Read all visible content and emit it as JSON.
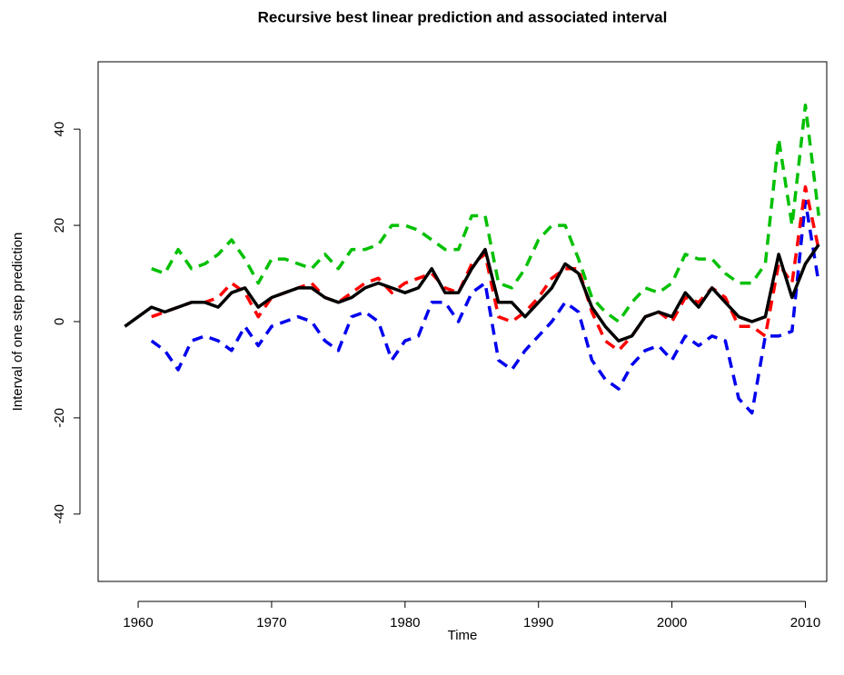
{
  "chart_data": {
    "type": "line",
    "title": "Recursive best linear prediction and associated interval",
    "xlabel": "Time",
    "ylabel": "Interval of one step prediction",
    "x": [
      1959,
      1960,
      1961,
      1962,
      1963,
      1964,
      1965,
      1966,
      1967,
      1968,
      1969,
      1970,
      1971,
      1972,
      1973,
      1974,
      1975,
      1976,
      1977,
      1978,
      1979,
      1980,
      1981,
      1982,
      1983,
      1984,
      1985,
      1986,
      1987,
      1988,
      1989,
      1990,
      1991,
      1992,
      1993,
      1994,
      1995,
      1996,
      1997,
      1998,
      1999,
      2000,
      2001,
      2002,
      2003,
      2004,
      2005,
      2006,
      2007,
      2008,
      2009,
      2010,
      2011
    ],
    "series": [
      {
        "color": "#00c000",
        "dashed": true,
        "values": [
          null,
          null,
          11,
          10,
          15,
          11,
          12,
          14,
          17,
          13,
          8,
          13,
          13,
          12,
          11,
          14,
          11,
          15,
          15,
          16,
          20,
          20,
          19,
          17,
          15,
          15,
          22,
          22,
          8,
          7,
          11,
          17,
          20,
          20,
          13,
          5,
          2,
          0,
          4,
          7,
          6,
          8,
          14,
          13,
          13,
          10,
          8,
          8,
          12,
          38,
          20,
          45,
          22
        ]
      },
      {
        "color": "#0000ee",
        "dashed": true,
        "values": [
          null,
          null,
          -4,
          -6,
          -10,
          -4,
          -3,
          -4,
          -6,
          -1,
          -5,
          -1,
          0,
          1,
          0,
          -4,
          -6,
          1,
          2,
          0,
          -8,
          -4,
          -3,
          4,
          4,
          0,
          6,
          8,
          -8,
          -10,
          -6,
          -3,
          0,
          4,
          2,
          -8,
          -12,
          -14,
          -9,
          -6,
          -5,
          -8,
          -3,
          -5,
          -3,
          -4,
          -16,
          -19,
          -3,
          -3,
          -2,
          25,
          8
        ]
      },
      {
        "color": "#ff0000",
        "dashed": true,
        "values": [
          null,
          null,
          1,
          2,
          3,
          4,
          4,
          5,
          8,
          6,
          1,
          5,
          6,
          7,
          8,
          5,
          4,
          6,
          8,
          9,
          6,
          8,
          9,
          10,
          7,
          6,
          12,
          14,
          1,
          0,
          2,
          5,
          9,
          11,
          11,
          2,
          -4,
          -6,
          -3,
          1,
          2,
          0,
          5,
          4,
          7,
          5,
          -1,
          -1,
          -3,
          12,
          8,
          28,
          15
        ]
      },
      {
        "color": "#000000",
        "dashed": false,
        "values": [
          -1,
          1,
          3,
          2,
          3,
          4,
          4,
          3,
          6,
          7,
          3,
          5,
          6,
          7,
          7,
          5,
          4,
          5,
          7,
          8,
          7,
          6,
          7,
          11,
          6,
          6,
          11,
          15,
          4,
          4,
          1,
          4,
          7,
          12,
          10,
          3,
          -1,
          -4,
          -3,
          1,
          2,
          1,
          6,
          3,
          7,
          4,
          1,
          0,
          1,
          14,
          5,
          12,
          16
        ]
      }
    ],
    "xlim": [
      1957,
      2011.6
    ],
    "ylim": [
      -54,
      54
    ],
    "xticks": [
      1960,
      1970,
      1980,
      1990,
      2000,
      2010
    ],
    "yticks": [
      -40,
      -20,
      0,
      20,
      40
    ]
  }
}
